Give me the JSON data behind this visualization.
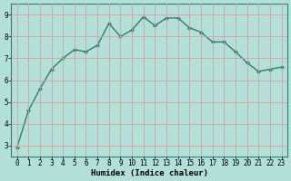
{
  "x": [
    0,
    1,
    2,
    3,
    4,
    5,
    6,
    7,
    8,
    9,
    10,
    11,
    12,
    13,
    14,
    15,
    16,
    17,
    18,
    19,
    20,
    21,
    22,
    23
  ],
  "y": [
    2.9,
    4.6,
    5.6,
    6.5,
    7.0,
    7.4,
    7.3,
    7.6,
    8.6,
    8.0,
    8.3,
    8.9,
    8.5,
    8.85,
    8.85,
    8.4,
    8.2,
    7.75,
    7.75,
    7.3,
    6.8,
    6.4,
    6.5,
    6.6
  ],
  "line_color": "#2e7d6e",
  "marker": "D",
  "marker_size": 2.0,
  "bg_color": "#b2e0d8",
  "grid_color": "#d4a0a0",
  "xlabel": "Humidex (Indice chaleur)",
  "ylim": [
    2.5,
    9.5
  ],
  "xlim": [
    -0.5,
    23.5
  ],
  "yticks": [
    3,
    4,
    5,
    6,
    7,
    8,
    9
  ],
  "xtick_labels": [
    "0",
    "1",
    "2",
    "3",
    "4",
    "5",
    "6",
    "7",
    "8",
    "9",
    "10",
    "11",
    "12",
    "13",
    "14",
    "15",
    "16",
    "17",
    "18",
    "19",
    "20",
    "21",
    "22",
    "23"
  ],
  "label_fontsize": 6.5,
  "tick_fontsize": 5.5,
  "line_width": 1.0
}
